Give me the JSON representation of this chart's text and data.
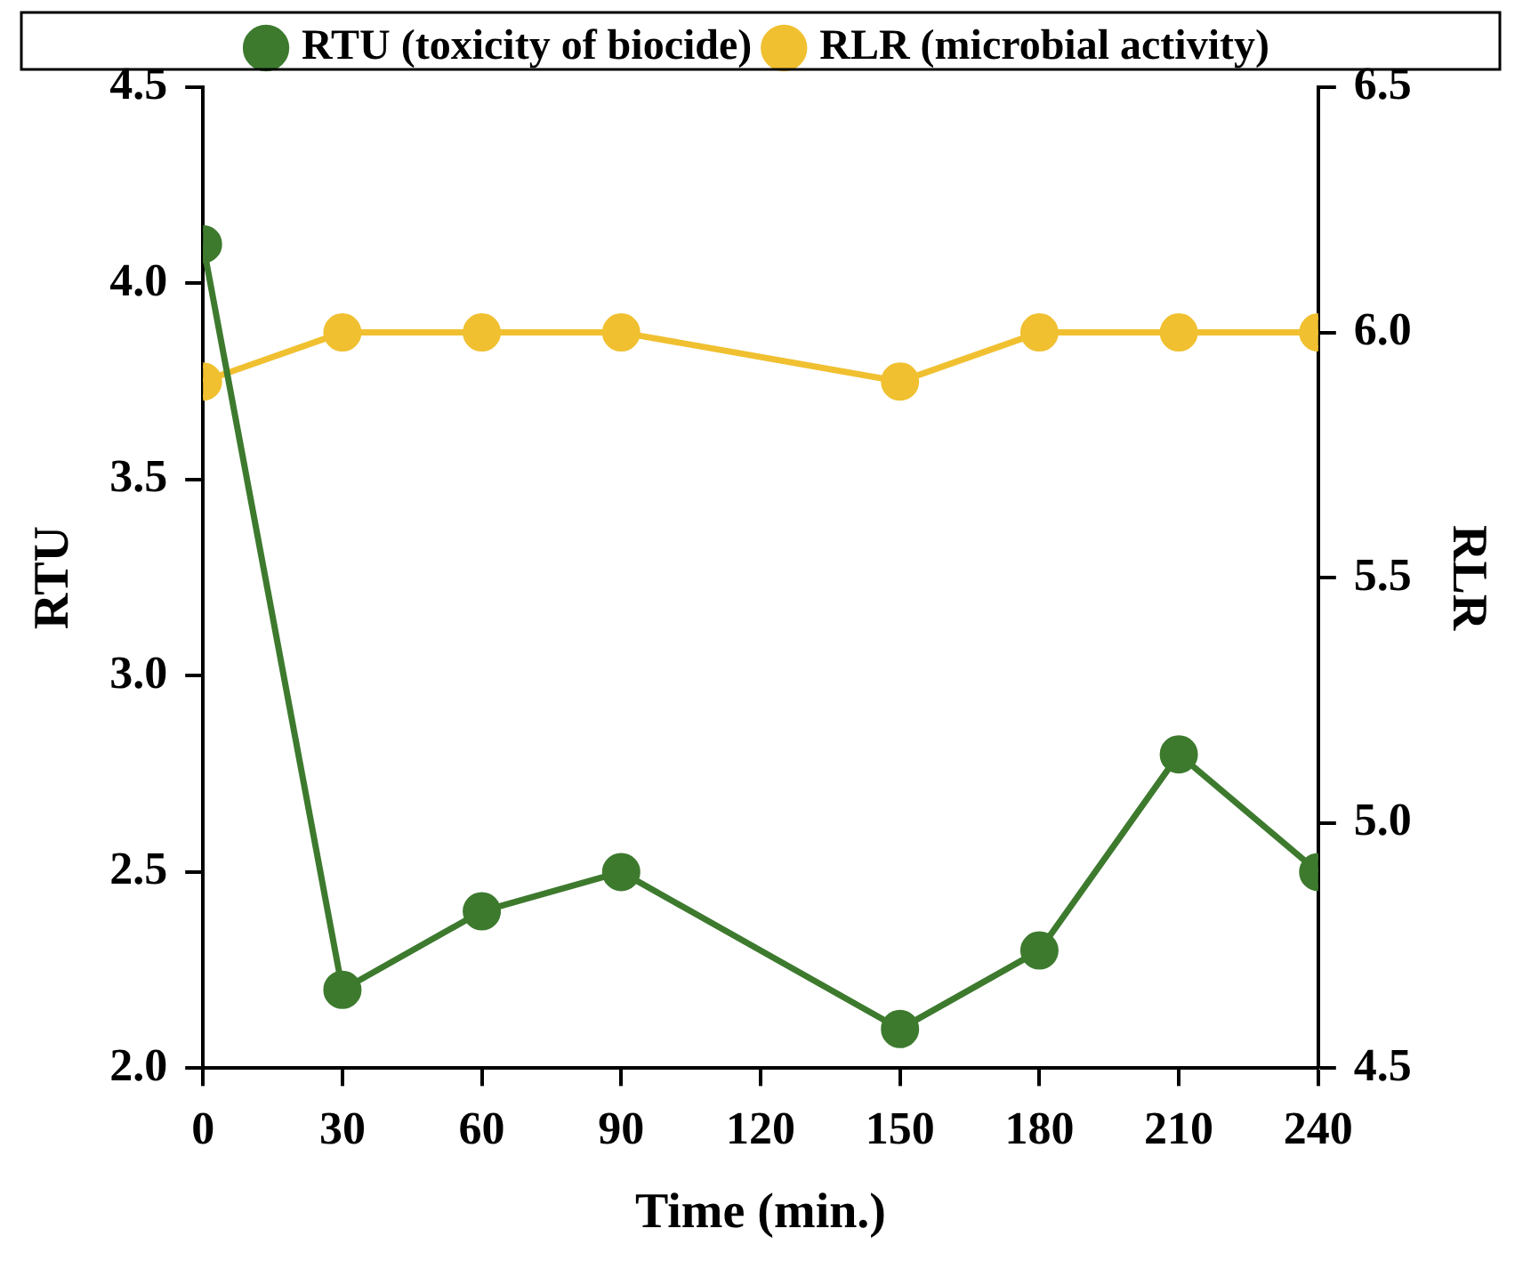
{
  "chart_data": {
    "type": "line",
    "xlabel": "Time (min.)",
    "ylabel": "RTU",
    "y2label": "RLR",
    "xlim": [
      0,
      240
    ],
    "xticks": [
      0,
      30,
      60,
      90,
      120,
      150,
      180,
      210,
      240
    ],
    "ylim": [
      2,
      4.5
    ],
    "yticks": [
      {
        "value": 2,
        "label": "2.0"
      },
      {
        "value": 2.5,
        "label": "2.5"
      },
      {
        "value": 3,
        "label": "3.0"
      },
      {
        "value": 3.5,
        "label": "3.5"
      },
      {
        "value": 4,
        "label": "4.0"
      },
      {
        "value": 4.5,
        "label": "4.5"
      }
    ],
    "y2lim": [
      4.5,
      6.5
    ],
    "y2ticks": [
      4.5,
      {
        "value": 5,
        "label": "5.0"
      },
      5.5,
      {
        "value": 6,
        "label": "6.0"
      },
      6.5
    ],
    "series": [
      {
        "name": "RTU (toxicity of biocide)",
        "color": "#3d7a2e",
        "x": [
          0,
          30,
          60,
          90,
          150,
          180,
          210,
          240
        ],
        "values": [
          4.1,
          2.2,
          2.4,
          2.5,
          2.1,
          2.3,
          2.8,
          2.5
        ]
      },
      {
        "name": "RLR (microbial activity)",
        "color": "#f0c030",
        "axis": "y2",
        "x": [
          0,
          30,
          60,
          90,
          150,
          180,
          210,
          240
        ],
        "values": [
          5.9,
          6.0,
          6.0,
          6.0,
          5.9,
          6.0,
          6.0,
          6.0
        ]
      }
    ],
    "legend": "top",
    "grid": false,
    "marker": "circle",
    "line_style": "solid"
  }
}
